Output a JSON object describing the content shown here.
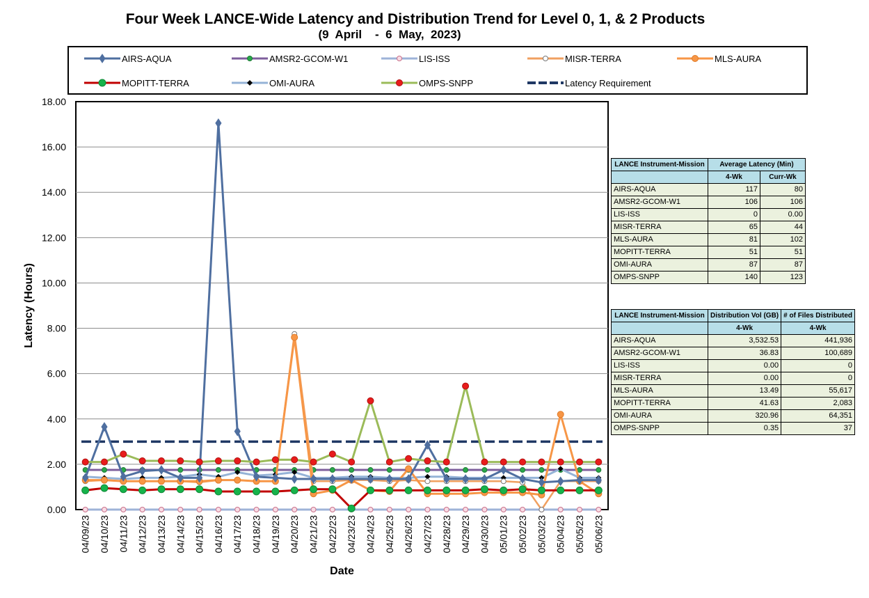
{
  "chart_data": {
    "type": "line",
    "title": "Four Week LANCE-Wide Latency and Distribution Trend for Level 0, 1, & 2 Products",
    "subtitle": "(9  April    -  6  May,  2023)",
    "xlabel": "Date",
    "ylabel": "Latency (Hours)",
    "ylim": [
      0,
      18
    ],
    "yticks": [
      "0.00",
      "2.00",
      "4.00",
      "6.00",
      "8.00",
      "10.00",
      "12.00",
      "14.00",
      "16.00",
      "18.00"
    ],
    "grid": true,
    "legend_position": "top",
    "categories": [
      "04/09/23",
      "04/10/23",
      "04/11/23",
      "04/12/23",
      "04/13/23",
      "04/14/23",
      "04/15/23",
      "04/16/23",
      "04/17/23",
      "04/18/23",
      "04/19/23",
      "04/20/23",
      "04/21/23",
      "04/22/23",
      "04/23/23",
      "04/24/23",
      "04/25/23",
      "04/26/23",
      "04/27/23",
      "04/28/23",
      "04/29/23",
      "04/30/23",
      "05/01/23",
      "05/02/23",
      "05/03/23",
      "05/04/23",
      "05/05/23",
      "05/06/23"
    ],
    "series": [
      {
        "name": "AIRS-AQUA",
        "color": "#4f6fa0",
        "marker": "diamond",
        "values": [
          1.4,
          3.65,
          1.45,
          1.7,
          1.75,
          1.4,
          1.4,
          17.05,
          3.45,
          1.45,
          1.4,
          1.35,
          1.35,
          1.35,
          1.35,
          1.35,
          1.35,
          1.35,
          2.85,
          1.35,
          1.35,
          1.35,
          1.75,
          1.35,
          1.2,
          1.25,
          1.3,
          1.3
        ]
      },
      {
        "name": "AMSR2-GCOM-W1",
        "color": "#7d5e9c",
        "marker": "circle",
        "values": [
          1.75,
          1.75,
          1.75,
          1.75,
          1.75,
          1.75,
          1.75,
          1.75,
          1.75,
          1.75,
          1.75,
          1.75,
          1.75,
          1.75,
          1.75,
          1.75,
          1.75,
          1.75,
          1.75,
          1.75,
          1.75,
          1.75,
          1.75,
          1.75,
          1.75,
          1.75,
          1.75,
          1.75
        ]
      },
      {
        "name": "LIS-ISS",
        "color": "#9eb3d8",
        "marker": "circle-open-pink",
        "values": [
          0,
          0,
          0,
          0,
          0,
          0,
          0,
          0,
          0,
          0,
          0,
          0,
          0,
          0,
          0,
          0,
          0,
          0,
          0,
          0,
          0,
          0,
          0,
          0,
          0,
          0,
          0,
          0
        ]
      },
      {
        "name": "MISR-TERRA",
        "color": "#f0a060",
        "marker": "circle-open",
        "values": [
          1.25,
          1.3,
          1.25,
          1.25,
          1.25,
          1.25,
          1.2,
          1.3,
          1.3,
          1.25,
          1.25,
          7.75,
          1.25,
          1.25,
          1.3,
          1.3,
          1.25,
          1.3,
          1.25,
          1.25,
          1.25,
          1.25,
          1.25,
          1.2,
          0.0,
          1.25,
          1.25,
          1.25
        ]
      },
      {
        "name": "MLS-AURA",
        "color": "#f79646",
        "marker": "circle-orange",
        "values": [
          1.3,
          1.3,
          1.25,
          1.25,
          1.25,
          1.25,
          1.25,
          1.3,
          1.3,
          1.25,
          1.25,
          7.6,
          0.7,
          0.85,
          1.3,
          0.85,
          0.8,
          1.8,
          0.7,
          0.7,
          0.7,
          0.75,
          0.75,
          0.75,
          0.65,
          4.2,
          1.25,
          0.7
        ]
      },
      {
        "name": "MOPITT-TERRA",
        "color": "#c00000",
        "marker": "circle-green",
        "values": [
          0.85,
          0.95,
          0.9,
          0.85,
          0.9,
          0.9,
          0.9,
          0.8,
          0.8,
          0.8,
          0.8,
          0.85,
          0.9,
          0.9,
          0.05,
          0.85,
          0.85,
          0.85,
          0.85,
          0.85,
          0.85,
          0.9,
          0.85,
          0.9,
          0.85,
          0.85,
          0.85,
          0.85
        ]
      },
      {
        "name": "OMI-AURA",
        "color": "#95b3d7",
        "marker": "diamond-black",
        "values": [
          1.45,
          1.4,
          1.35,
          1.4,
          1.4,
          1.45,
          1.55,
          1.45,
          1.65,
          1.5,
          1.55,
          1.65,
          1.4,
          1.4,
          1.45,
          1.45,
          1.4,
          1.4,
          1.45,
          1.45,
          1.4,
          1.4,
          1.4,
          1.4,
          1.4,
          1.8,
          1.4,
          1.4
        ]
      },
      {
        "name": "OMPS-SNPP",
        "color": "#9bbb59",
        "marker": "circle-red",
        "values": [
          2.1,
          2.1,
          2.45,
          2.15,
          2.15,
          2.15,
          2.1,
          2.15,
          2.15,
          2.1,
          2.2,
          2.2,
          2.1,
          2.45,
          2.1,
          4.8,
          2.1,
          2.25,
          2.15,
          2.1,
          5.45,
          2.1,
          2.1,
          2.1,
          2.1,
          2.1,
          2.1,
          2.1
        ]
      },
      {
        "name": "Latency Requirement",
        "color": "#1f3864",
        "marker": "dash",
        "values": [
          3,
          3,
          3,
          3,
          3,
          3,
          3,
          3,
          3,
          3,
          3,
          3,
          3,
          3,
          3,
          3,
          3,
          3,
          3,
          3,
          3,
          3,
          3,
          3,
          3,
          3,
          3,
          3
        ]
      }
    ]
  },
  "table1": {
    "header_col1": "LANCE Instrument-Mission",
    "header_col2": "Average Latency (Min)",
    "sub_col2": "4-Wk",
    "sub_col3": "Curr-Wk",
    "rows": [
      {
        "name": "AIRS-AQUA",
        "a": "117",
        "b": "80"
      },
      {
        "name": "AMSR2-GCOM-W1",
        "a": "106",
        "b": "106"
      },
      {
        "name": "LIS-ISS",
        "a": "0",
        "b": "0.00"
      },
      {
        "name": "MISR-TERRA",
        "a": "65",
        "b": "44"
      },
      {
        "name": "MLS-AURA",
        "a": "81",
        "b": "102"
      },
      {
        "name": "MOPITT-TERRA",
        "a": "51",
        "b": "51"
      },
      {
        "name": "OMI-AURA",
        "a": "87",
        "b": "87"
      },
      {
        "name": "OMPS-SNPP",
        "a": "140",
        "b": "123"
      }
    ]
  },
  "table2": {
    "header_col1": "LANCE Instrument-Mission",
    "header_col2": "Distribution Vol (GB)",
    "header_col3": "# of Files Distributed",
    "sub_col2": "4-Wk",
    "sub_col3": "4-Wk",
    "rows": [
      {
        "name": "AIRS-AQUA",
        "a": "3,532.53",
        "b": "441,936"
      },
      {
        "name": "AMSR2-GCOM-W1",
        "a": "36.83",
        "b": "100,689"
      },
      {
        "name": "LIS-ISS",
        "a": "0.00",
        "b": "0"
      },
      {
        "name": "MISR-TERRA",
        "a": "0.00",
        "b": "0"
      },
      {
        "name": "MLS-AURA",
        "a": "13.49",
        "b": "55,617"
      },
      {
        "name": "MOPITT-TERRA",
        "a": "41.63",
        "b": "2,083"
      },
      {
        "name": "OMI-AURA",
        "a": "320.96",
        "b": "64,351"
      },
      {
        "name": "OMPS-SNPP",
        "a": "0.35",
        "b": "37"
      }
    ]
  }
}
